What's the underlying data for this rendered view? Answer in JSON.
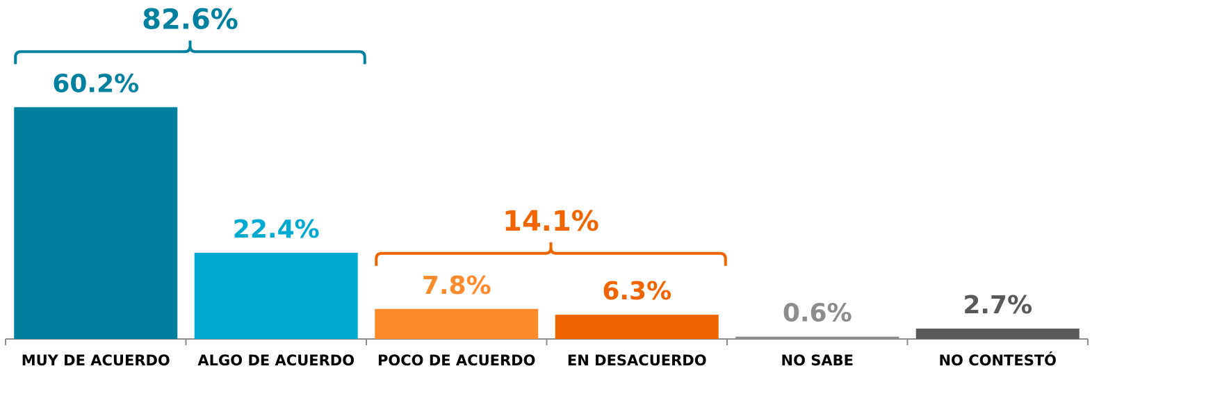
{
  "chart_data": {
    "type": "bar",
    "categories": [
      "MUY DE ACUERDO",
      "ALGO DE ACUERDO",
      "POCO DE ACUERDO",
      "EN DESACUERDO",
      "NO SABE",
      "NO CONTESTÓ"
    ],
    "values": [
      60.2,
      22.4,
      7.8,
      6.3,
      0.6,
      2.7
    ],
    "value_labels": [
      "60.2%",
      "22.4%",
      "7.8%",
      "6.3%",
      "0.6%",
      "2.7%"
    ],
    "colors": [
      "#00809f",
      "#00a9d0",
      "#ff8a2c",
      "#f06500",
      "#8c8c8c",
      "#595959"
    ],
    "ylim": [
      0,
      70
    ],
    "annotations": [
      {
        "value": 82.6,
        "label": "82.6%",
        "categories": [
          "MUY DE ACUERDO",
          "ALGO DE ACUERDO"
        ],
        "color": "#00809f"
      },
      {
        "value": 14.1,
        "label": "14.1%",
        "categories": [
          "POCO DE ACUERDO",
          "EN DESACUERDO"
        ],
        "color": "#f06500"
      }
    ]
  }
}
